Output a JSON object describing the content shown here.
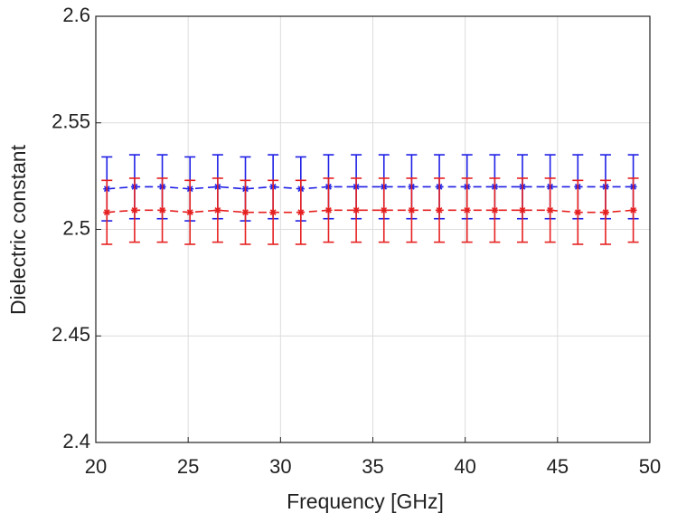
{
  "chart_data": {
    "type": "line",
    "xlabel": "Frequency [GHz]",
    "ylabel": "Dielectric constant",
    "x": [
      20.6,
      22.1,
      23.6,
      25.1,
      26.6,
      28.1,
      29.6,
      31.1,
      32.6,
      34.1,
      35.6,
      37.1,
      38.6,
      40.1,
      41.6,
      43.1,
      44.6,
      46.1,
      47.6,
      49.1
    ],
    "series": [
      {
        "color": "#1f1fe6",
        "values": [
          2.519,
          2.52,
          2.52,
          2.519,
          2.52,
          2.519,
          2.52,
          2.519,
          2.52,
          2.52,
          2.52,
          2.52,
          2.52,
          2.52,
          2.52,
          2.52,
          2.52,
          2.52,
          2.52,
          2.52
        ],
        "errors": [
          0.015,
          0.015,
          0.015,
          0.015,
          0.015,
          0.015,
          0.015,
          0.015,
          0.015,
          0.015,
          0.015,
          0.015,
          0.015,
          0.015,
          0.015,
          0.015,
          0.015,
          0.015,
          0.015,
          0.015
        ]
      },
      {
        "color": "#e62020",
        "values": [
          2.508,
          2.509,
          2.509,
          2.508,
          2.509,
          2.508,
          2.508,
          2.508,
          2.509,
          2.509,
          2.509,
          2.509,
          2.509,
          2.509,
          2.509,
          2.509,
          2.509,
          2.508,
          2.508,
          2.509
        ],
        "errors": [
          0.015,
          0.015,
          0.015,
          0.015,
          0.015,
          0.015,
          0.015,
          0.015,
          0.015,
          0.015,
          0.015,
          0.015,
          0.015,
          0.015,
          0.015,
          0.015,
          0.015,
          0.015,
          0.015,
          0.015
        ]
      }
    ],
    "xlim": [
      20,
      50
    ],
    "xticks": [
      20,
      25,
      30,
      35,
      40,
      45,
      50
    ],
    "ylim": [
      2.4,
      2.6
    ],
    "yticks": [
      2.4,
      2.45,
      2.5,
      2.55,
      2.6
    ],
    "grid": true
  }
}
